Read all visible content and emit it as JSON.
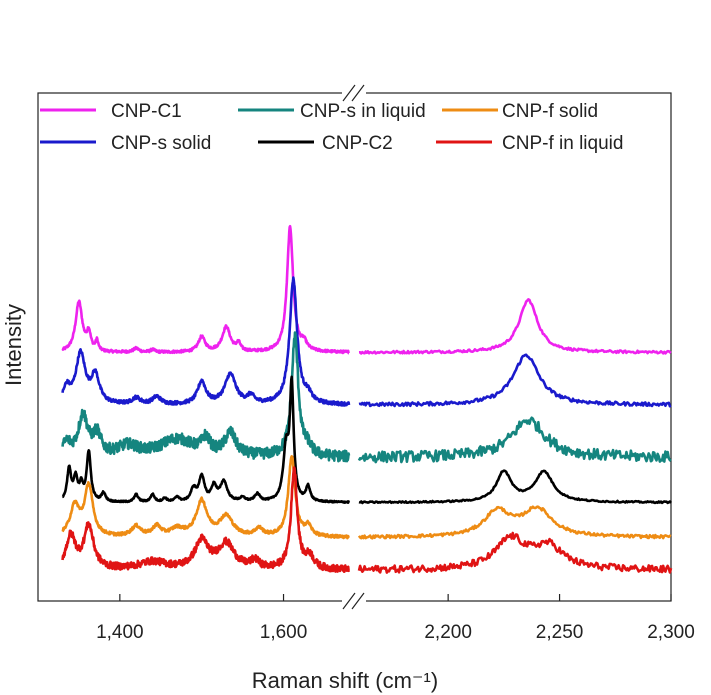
{
  "chart_data": {
    "type": "line",
    "title": "",
    "xlabel": "Raman shift (cm⁻¹)",
    "ylabel": "Intensity",
    "broken_x_axis": true,
    "segments": [
      {
        "xlim": [
          1300,
          1680
        ],
        "ticks": [
          1400,
          1600
        ],
        "tick_labels": [
          "1,400",
          "1,600"
        ]
      },
      {
        "xlim": [
          2160,
          2300
        ],
        "ticks": [
          2200,
          2250,
          2300
        ],
        "tick_labels": [
          "2,200",
          "2,250",
          "2,300"
        ]
      }
    ],
    "y_ticks": "none",
    "legend": {
      "placement": "top",
      "columns": 3
    },
    "series": [
      {
        "name": "CNP-C1",
        "color": "#ee22ee",
        "baseline": 8.7,
        "noise": 0.05,
        "peaks1": [
          [
            1350,
            2.0,
            5
          ],
          [
            1362,
            0.7,
            3
          ],
          [
            1372,
            0.4,
            2
          ],
          [
            1420,
            0.15,
            4
          ],
          [
            1440,
            0.1,
            3
          ],
          [
            1500,
            0.6,
            5
          ],
          [
            1530,
            1.0,
            6
          ],
          [
            1545,
            0.3,
            3
          ],
          [
            1608,
            5.0,
            4.5
          ],
          [
            1625,
            0.3,
            4
          ]
        ],
        "peaks2": [
          [
            2236,
            2.1,
            5
          ]
        ]
      },
      {
        "name": "CNP-s solid",
        "color": "#1a1acc",
        "baseline": 6.6,
        "noise": 0.07,
        "peaks1": [
          [
            1335,
            0.6,
            5
          ],
          [
            1352,
            2.0,
            7
          ],
          [
            1370,
            1.1,
            6
          ],
          [
            1420,
            0.25,
            6
          ],
          [
            1445,
            0.3,
            6
          ],
          [
            1500,
            0.9,
            6
          ],
          [
            1535,
            1.2,
            8
          ],
          [
            1560,
            0.3,
            5
          ],
          [
            1612,
            5.0,
            5.5
          ],
          [
            1630,
            0.3,
            5
          ]
        ],
        "peaks2": [
          [
            2235,
            2.0,
            7
          ]
        ]
      },
      {
        "name": "CNP-s in liquid",
        "color": "#15857f",
        "baseline": 4.5,
        "noise": 0.22,
        "peaks1": [
          [
            1335,
            0.5,
            6
          ],
          [
            1355,
            1.6,
            7
          ],
          [
            1372,
            0.8,
            6
          ],
          [
            1410,
            0.4,
            15
          ],
          [
            1470,
            0.7,
            25
          ],
          [
            1505,
            0.6,
            6
          ],
          [
            1535,
            0.9,
            8
          ],
          [
            1614,
            4.8,
            5
          ],
          [
            1630,
            0.3,
            5
          ]
        ],
        "peaks2": [
          [
            2236,
            1.5,
            9
          ]
        ]
      },
      {
        "name": "CNP-C2",
        "color": "#000000",
        "baseline": 2.7,
        "noise": 0.03,
        "peaks1": [
          [
            1338,
            1.3,
            3
          ],
          [
            1346,
            0.9,
            3
          ],
          [
            1353,
            0.6,
            2.5
          ],
          [
            1362,
            2.0,
            3
          ],
          [
            1380,
            0.35,
            3
          ],
          [
            1420,
            0.3,
            3
          ],
          [
            1440,
            0.3,
            3
          ],
          [
            1455,
            0.15,
            3
          ],
          [
            1470,
            0.2,
            3
          ],
          [
            1490,
            0.5,
            4
          ],
          [
            1500,
            1.0,
            4
          ],
          [
            1515,
            0.6,
            4
          ],
          [
            1527,
            0.8,
            5
          ],
          [
            1550,
            0.15,
            4
          ],
          [
            1568,
            0.3,
            4
          ],
          [
            1603,
            2.0,
            4
          ],
          [
            1610,
            4.5,
            2.8
          ],
          [
            1630,
            0.6,
            3
          ]
        ],
        "peaks2": [
          [
            2225,
            1.2,
            4
          ],
          [
            2243,
            1.2,
            5
          ]
        ]
      },
      {
        "name": "CNP-f solid",
        "color": "#ee8c14",
        "baseline": 1.3,
        "noise": 0.06,
        "peaks1": [
          [
            1345,
            1.2,
            7
          ],
          [
            1362,
            2.0,
            6
          ],
          [
            1420,
            0.4,
            7
          ],
          [
            1445,
            0.4,
            6
          ],
          [
            1470,
            0.3,
            10
          ],
          [
            1500,
            1.4,
            8
          ],
          [
            1530,
            0.8,
            10
          ],
          [
            1570,
            0.3,
            6
          ],
          [
            1610,
            3.2,
            5
          ],
          [
            1630,
            0.4,
            5
          ]
        ],
        "peaks2": [
          [
            2222,
            1.0,
            7
          ],
          [
            2240,
            1.1,
            8
          ]
        ]
      },
      {
        "name": "CNP-f in liquid",
        "color": "#e01414",
        "baseline": 0.0,
        "noise": 0.14,
        "peaks1": [
          [
            1340,
            1.3,
            7
          ],
          [
            1362,
            1.7,
            7
          ],
          [
            1440,
            0.3,
            20
          ],
          [
            1500,
            1.1,
            10
          ],
          [
            1530,
            1.0,
            12
          ],
          [
            1565,
            0.3,
            6
          ],
          [
            1613,
            4.0,
            4.5
          ],
          [
            1632,
            0.5,
            6
          ]
        ],
        "peaks2": [
          [
            2228,
            1.2,
            8
          ],
          [
            2245,
            0.9,
            8
          ]
        ]
      }
    ]
  }
}
